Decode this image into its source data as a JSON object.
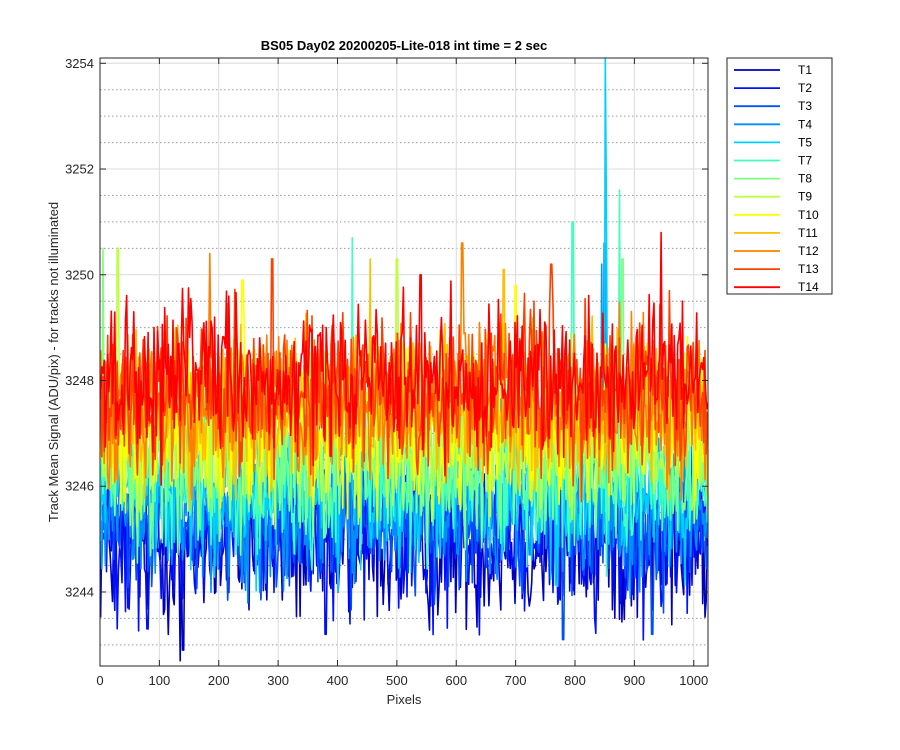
{
  "chart_data": {
    "type": "line",
    "title": "BS05 Day02 20200205-Lite-018 int time = 2 sec",
    "xlabel": "Pixels",
    "ylabel": "Track Mean Signal (ADU/pix) - for tracks not illuminated",
    "xlim": [
      0,
      1024
    ],
    "ylim": [
      3242.6,
      3254.1
    ],
    "xticks": [
      0,
      100,
      200,
      300,
      400,
      500,
      600,
      700,
      800,
      900,
      1000
    ],
    "yticks": [
      3244,
      3246,
      3248,
      3250,
      3252,
      3254
    ],
    "grid": "major solid, minor dotted",
    "legend_position": "outside right",
    "series": [
      {
        "name": "T1",
        "color": "#0000bf",
        "mean": 3244.9,
        "noise": 0.75,
        "spikes": [
          [
            135,
            3242.7
          ],
          [
            140,
            3242.9
          ]
        ]
      },
      {
        "name": "T2",
        "color": "#0010ff",
        "mean": 3245.1,
        "noise": 0.75,
        "spikes": [
          [
            80,
            3243.3
          ],
          [
            380,
            3243.2
          ]
        ]
      },
      {
        "name": "T3",
        "color": "#0050ff",
        "mean": 3245.4,
        "noise": 0.75,
        "spikes": [
          [
            780,
            3243.1
          ],
          [
            930,
            3243.2
          ]
        ]
      },
      {
        "name": "T4",
        "color": "#0090ff",
        "mean": 3245.7,
        "noise": 0.75,
        "spikes": [
          [
            845,
            3250.2
          ],
          [
            850,
            3250.6
          ]
        ]
      },
      {
        "name": "T5",
        "color": "#00d0ff",
        "mean": 3246.0,
        "noise": 0.75,
        "spikes": [
          [
            851,
            3254.1
          ],
          [
            853,
            3251.0
          ]
        ]
      },
      {
        "name": "T7",
        "color": "#40ffbf",
        "mean": 3246.3,
        "noise": 0.75,
        "spikes": [
          [
            796,
            3251.0
          ],
          [
            875,
            3251.6
          ],
          [
            425,
            3250.7
          ]
        ]
      },
      {
        "name": "T8",
        "color": "#80ff80",
        "mean": 3246.6,
        "noise": 0.75,
        "spikes": [
          [
            5,
            3250.5
          ],
          [
            880,
            3250.3
          ]
        ]
      },
      {
        "name": "T9",
        "color": "#bfff40",
        "mean": 3246.9,
        "noise": 0.75,
        "spikes": [
          [
            30,
            3250.5
          ],
          [
            500,
            3250.3
          ]
        ]
      },
      {
        "name": "T10",
        "color": "#ffff00",
        "mean": 3247.2,
        "noise": 0.75,
        "spikes": [
          [
            240,
            3249.9
          ],
          [
            700,
            3249.8
          ]
        ]
      },
      {
        "name": "T11",
        "color": "#ffbf00",
        "mean": 3247.4,
        "noise": 0.75,
        "spikes": [
          [
            455,
            3250.3
          ],
          [
            680,
            3250.1
          ]
        ]
      },
      {
        "name": "T12",
        "color": "#ff8000",
        "mean": 3247.6,
        "noise": 0.75,
        "spikes": [
          [
            185,
            3250.4
          ],
          [
            610,
            3250.6
          ]
        ]
      },
      {
        "name": "T13",
        "color": "#ff4000",
        "mean": 3247.8,
        "noise": 0.75,
        "spikes": [
          [
            290,
            3250.3
          ],
          [
            760,
            3250.2
          ]
        ]
      },
      {
        "name": "T14",
        "color": "#ff0000",
        "mean": 3248.0,
        "noise": 0.75,
        "spikes": [
          [
            945,
            3250.8
          ],
          [
            540,
            3250.0
          ]
        ]
      }
    ]
  }
}
